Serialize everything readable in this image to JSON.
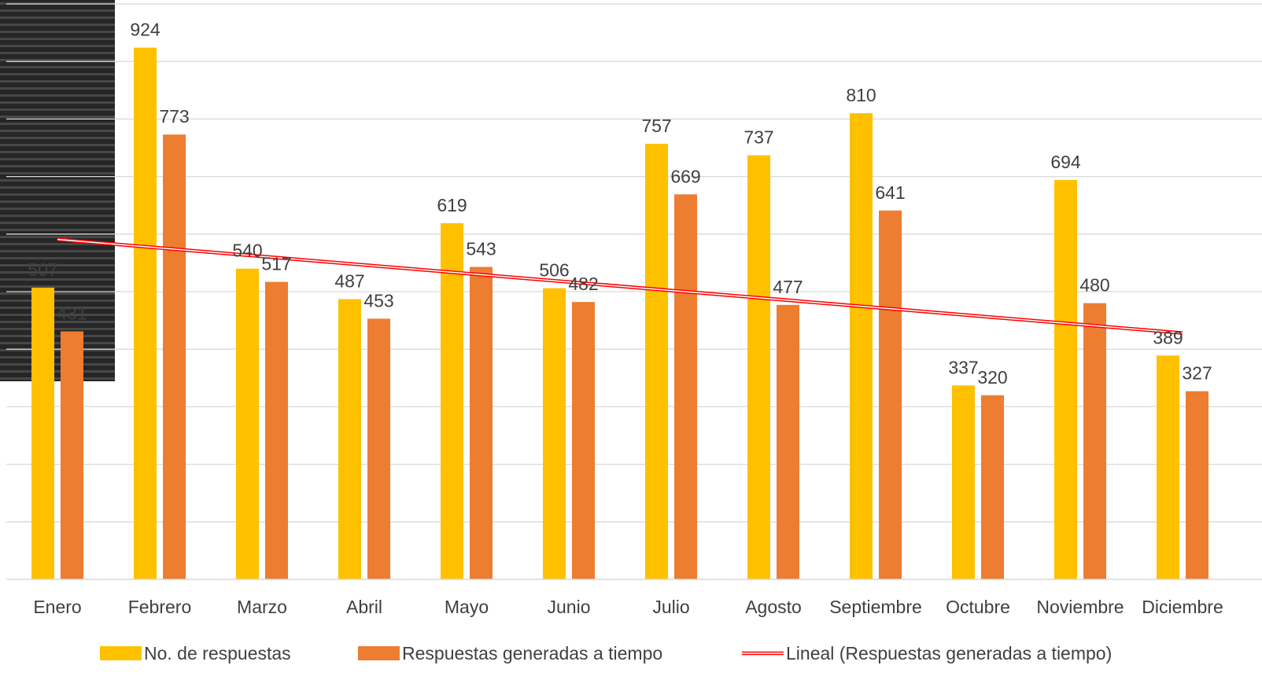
{
  "chart_data": {
    "type": "bar",
    "categories": [
      "Enero",
      "Febrero",
      "Marzo",
      "Abril",
      "Mayo",
      "Junio",
      "Julio",
      "Agosto",
      "Septiembre",
      "Octubre",
      "Noviembre",
      "Diciembre"
    ],
    "series": [
      {
        "name": "No. de respuestas",
        "values": [
          507,
          924,
          540,
          487,
          619,
          506,
          757,
          737,
          810,
          337,
          694,
          389
        ],
        "color": "#FFC000"
      },
      {
        "name": "Respuestas generadas a tiempo",
        "values": [
          431,
          773,
          517,
          453,
          543,
          482,
          669,
          477,
          641,
          320,
          480,
          327
        ],
        "color": "#ED7D31"
      }
    ],
    "trendline": {
      "name": "Lineal (Respuestas generadas a tiempo)",
      "type": "linear",
      "of_series": "Respuestas generadas a tiempo",
      "color": "#FF0000"
    },
    "title": "",
    "xlabel": "",
    "ylabel": "",
    "ylim": [
      0,
      1000
    ],
    "grid": true,
    "legend_position": "bottom"
  }
}
